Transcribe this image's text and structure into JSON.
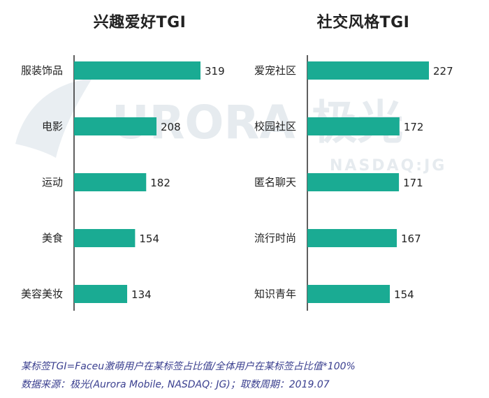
{
  "watermark": {
    "brand": "URORA 极光",
    "ticker": "NASDAQ:JG"
  },
  "chart_data": [
    {
      "type": "bar",
      "orientation": "horizontal",
      "title": "兴趣爱好TGI",
      "categories": [
        "服装饰品",
        "电影",
        "运动",
        "美食",
        "美容美妆"
      ],
      "values": [
        319,
        208,
        182,
        154,
        134
      ],
      "xlim": [
        0,
        319
      ],
      "grid": false,
      "colors": {
        "bar": "#1aab93"
      }
    },
    {
      "type": "bar",
      "orientation": "horizontal",
      "title": "社交风格TGI",
      "categories": [
        "爱宠社区",
        "校园社区",
        "匿名聊天",
        "流行时尚",
        "知识青年"
      ],
      "values": [
        227,
        172,
        171,
        167,
        154
      ],
      "xlim": [
        0,
        227
      ],
      "grid": false,
      "colors": {
        "bar": "#1aab93"
      }
    }
  ],
  "footnotes": {
    "formula": "某标签TGI=Faceu激萌用户在某标签占比值/全体用户在某标签占比值*100%",
    "source": "数据来源：极光(Aurora Mobile, NASDAQ: JG)；取数周期：2019.07"
  }
}
